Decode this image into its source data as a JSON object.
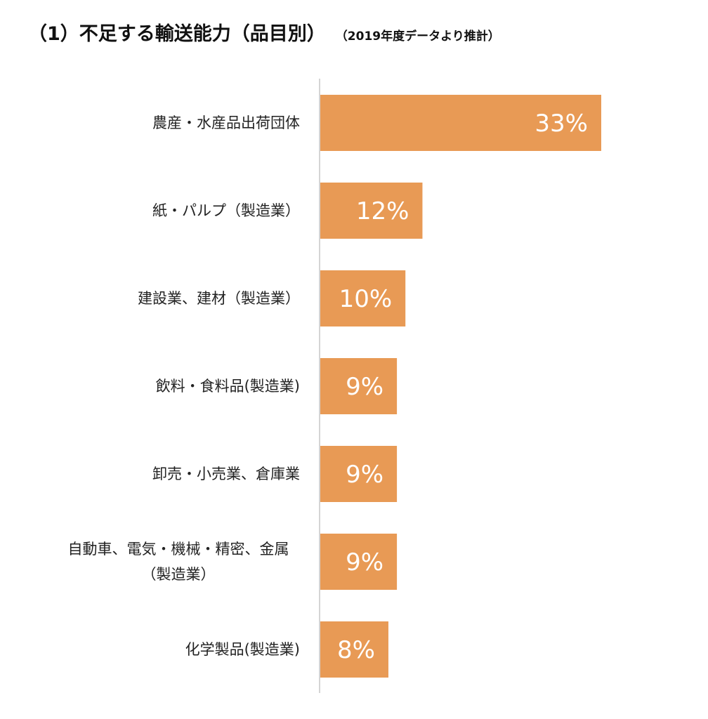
{
  "chart_data": {
    "type": "bar",
    "orientation": "horizontal",
    "title": "（1）不足する輸送能力（品目別）",
    "subtitle": "（2019年度データより推計）",
    "categories": [
      "農産・水産品出荷団体",
      "紙・パルプ（製造業）",
      "建設業、建材（製造業）",
      "飲料・食料品(製造業)",
      "卸売・小売業、倉庫業",
      "自動車、電気・機械・精密、金属\n（製造業）",
      "化学製品(製造業)"
    ],
    "values": [
      33,
      12,
      10,
      9,
      9,
      9,
      8
    ],
    "value_labels": [
      "33%",
      "12%",
      "10%",
      "9%",
      "9%",
      "9%",
      "8%"
    ],
    "unit": "%",
    "bar_color": "#E89A55",
    "xlim": [
      0,
      33
    ],
    "grid": false,
    "legend": "none"
  }
}
